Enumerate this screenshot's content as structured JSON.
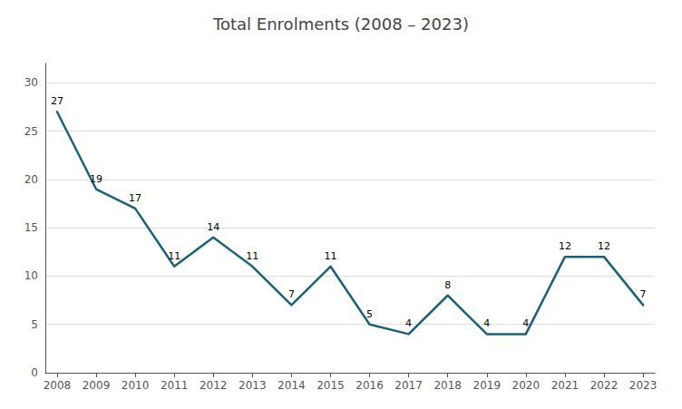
{
  "chart_data": {
    "type": "line",
    "title": "Total Enrolments (2008 – 2023)",
    "x": [
      2008,
      2009,
      2010,
      2011,
      2012,
      2013,
      2014,
      2015,
      2016,
      2017,
      2018,
      2019,
      2020,
      2021,
      2022,
      2023
    ],
    "values": [
      27,
      19,
      17,
      11,
      14,
      11,
      7,
      11,
      5,
      4,
      8,
      4,
      4,
      12,
      12,
      7
    ],
    "color": "#1a6278",
    "xlim": [
      2007.7,
      2023.3
    ],
    "xticks": [
      2008,
      2009,
      2010,
      2011,
      2012,
      2013,
      2014,
      2015,
      2016,
      2017,
      2018,
      2019,
      2020,
      2021,
      2022,
      2023
    ],
    "ylim": [
      0,
      32
    ],
    "yticks": [
      0,
      5,
      10,
      15,
      20,
      25,
      30
    ],
    "grid": true,
    "data_labels": true
  }
}
